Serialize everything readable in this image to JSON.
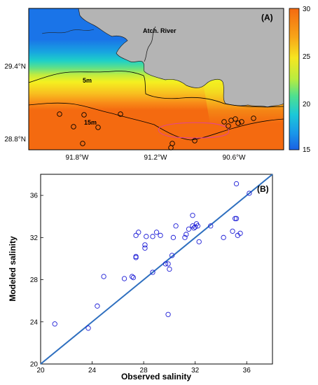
{
  "chart_data": [
    {
      "type": "heatmap",
      "panel_label": "(A)",
      "x_ticks": [
        "91.8°W",
        "91.2°W",
        "90.6°W"
      ],
      "y_ticks": [
        "29.4°N",
        "28.8°N"
      ],
      "colorbar": {
        "min": 15,
        "max": 30,
        "ticks": [
          "30",
          "25",
          "20",
          "15"
        ]
      },
      "annotations": [
        "Atch. River",
        "5m",
        "15m"
      ],
      "colors": {
        "land": "#b4b4b4",
        "contour": "#000000",
        "highlight_contour": "#e040a0",
        "station": "#000000"
      }
    },
    {
      "type": "scatter",
      "panel_label": "(B)",
      "xlabel": "Observed salinity",
      "ylabel": "Modeled salinity",
      "xlim": [
        20,
        38
      ],
      "ylim": [
        20,
        38
      ],
      "x_ticks": [
        "20",
        "24",
        "28",
        "32",
        "36"
      ],
      "y_ticks": [
        "20",
        "24",
        "28",
        "32",
        "36"
      ],
      "line": {
        "x": [
          20,
          38
        ],
        "y": [
          20,
          38
        ],
        "color": "#2e6fbf"
      },
      "marker_color": "#1c1cd6",
      "points": [
        {
          "x": 21.1,
          "y": 23.8
        },
        {
          "x": 23.7,
          "y": 23.4
        },
        {
          "x": 24.4,
          "y": 25.5
        },
        {
          "x": 24.9,
          "y": 28.3
        },
        {
          "x": 26.5,
          "y": 28.1
        },
        {
          "x": 27.1,
          "y": 28.3
        },
        {
          "x": 27.2,
          "y": 28.2
        },
        {
          "x": 27.4,
          "y": 30.1
        },
        {
          "x": 27.4,
          "y": 30.2
        },
        {
          "x": 27.4,
          "y": 32.2
        },
        {
          "x": 27.6,
          "y": 32.5
        },
        {
          "x": 28.1,
          "y": 31.0
        },
        {
          "x": 28.1,
          "y": 31.3
        },
        {
          "x": 28.2,
          "y": 32.1
        },
        {
          "x": 28.7,
          "y": 28.7
        },
        {
          "x": 28.7,
          "y": 32.1
        },
        {
          "x": 29.0,
          "y": 32.5
        },
        {
          "x": 29.3,
          "y": 32.2
        },
        {
          "x": 29.7,
          "y": 29.5
        },
        {
          "x": 29.9,
          "y": 29.5
        },
        {
          "x": 29.9,
          "y": 24.7
        },
        {
          "x": 30.0,
          "y": 29.0
        },
        {
          "x": 30.2,
          "y": 30.3
        },
        {
          "x": 30.3,
          "y": 32.0
        },
        {
          "x": 30.5,
          "y": 33.1
        },
        {
          "x": 31.2,
          "y": 32.0
        },
        {
          "x": 31.3,
          "y": 32.3
        },
        {
          "x": 31.5,
          "y": 32.8
        },
        {
          "x": 31.8,
          "y": 34.1
        },
        {
          "x": 31.8,
          "y": 33.1
        },
        {
          "x": 31.9,
          "y": 32.9
        },
        {
          "x": 32.0,
          "y": 33.0
        },
        {
          "x": 32.1,
          "y": 33.3
        },
        {
          "x": 32.2,
          "y": 33.1
        },
        {
          "x": 32.3,
          "y": 31.6
        },
        {
          "x": 33.2,
          "y": 33.1
        },
        {
          "x": 34.2,
          "y": 32.0
        },
        {
          "x": 34.9,
          "y": 32.6
        },
        {
          "x": 35.1,
          "y": 33.8
        },
        {
          "x": 35.2,
          "y": 33.8
        },
        {
          "x": 35.2,
          "y": 37.1
        },
        {
          "x": 35.3,
          "y": 32.2
        },
        {
          "x": 35.5,
          "y": 32.4
        },
        {
          "x": 36.2,
          "y": 36.2
        }
      ]
    }
  ]
}
